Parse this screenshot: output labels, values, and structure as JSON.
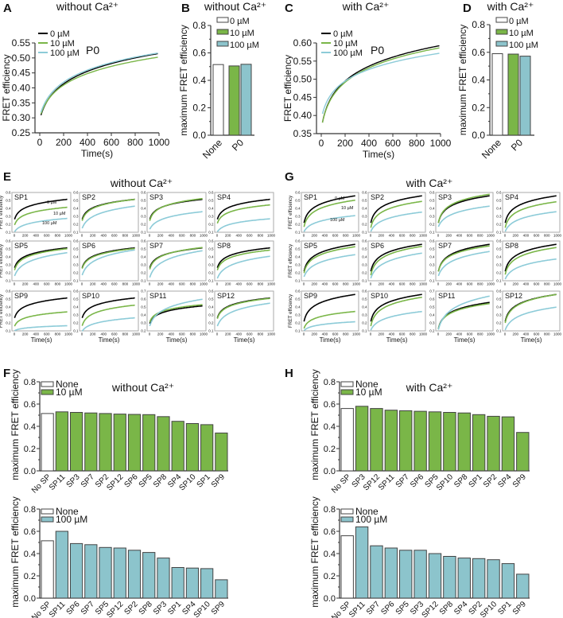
{
  "chart_data": [
    {
      "panel": "A",
      "type": "line",
      "title": "without Ca²⁺",
      "annotation": "P0",
      "xlabel": "Time(s)",
      "ylabel": "FRET efficiency",
      "xlim": [
        0,
        1000
      ],
      "ylim": [
        0.25,
        0.55
      ],
      "xticks": [
        "0",
        "200",
        "400",
        "600",
        "800",
        "1000"
      ],
      "yticks": [
        "0.25",
        "0.30",
        "0.35",
        "0.40",
        "0.45",
        "0.50",
        "0.55"
      ],
      "series": [
        {
          "name": "0 µM",
          "color": "#000000",
          "start": 0.295,
          "end": 0.515
        },
        {
          "name": "10 µM",
          "color": "#7ab648",
          "start": 0.3,
          "end": 0.503
        },
        {
          "name": "100 µM",
          "color": "#8ccbd8",
          "start": 0.305,
          "end": 0.517
        }
      ]
    },
    {
      "panel": "B",
      "type": "bar",
      "title": "without Ca²⁺",
      "ylabel": "maximum FRET efficiency",
      "ylim": [
        0,
        0.8
      ],
      "yticks": [
        "0.0",
        "0.2",
        "0.4",
        "0.6",
        "0.8"
      ],
      "categories": [
        "None",
        "P0"
      ],
      "series": [
        {
          "name": "0 µM",
          "color": "#ffffff",
          "values": [
            0.515,
            null
          ]
        },
        {
          "name": "10 µM",
          "color": "#7ab648",
          "values": [
            null,
            0.505
          ]
        },
        {
          "name": "100 µM",
          "color": "#8cc4cc",
          "values": [
            null,
            0.517
          ]
        }
      ]
    },
    {
      "panel": "C",
      "type": "line",
      "title": "with Ca²⁺",
      "annotation": "P0",
      "xlabel": "Time(s)",
      "ylabel": "FRET efficiency",
      "xlim": [
        0,
        1000
      ],
      "ylim": [
        0.35,
        0.6
      ],
      "xticks": [
        "0",
        "200",
        "400",
        "600",
        "800",
        "1000"
      ],
      "yticks": [
        "0.35",
        "0.40",
        "0.45",
        "0.50",
        "0.55",
        "0.60"
      ],
      "series": [
        {
          "name": "0 µM",
          "color": "#000000",
          "start": 0.362,
          "end": 0.593
        },
        {
          "name": "10 µM",
          "color": "#7ab648",
          "start": 0.362,
          "end": 0.587
        },
        {
          "name": "100 µM",
          "color": "#8ccbd8",
          "start": 0.39,
          "end": 0.572
        }
      ]
    },
    {
      "panel": "D",
      "type": "bar",
      "title": "with Ca²⁺",
      "ylabel": "maximum FRET efficiency",
      "ylim": [
        0,
        0.8
      ],
      "yticks": [
        "0.0",
        "0.2",
        "0.4",
        "0.6",
        "0.8"
      ],
      "categories": [
        "None",
        "P0"
      ],
      "series": [
        {
          "name": "0 µM",
          "color": "#ffffff",
          "values": [
            0.59,
            null
          ]
        },
        {
          "name": "10 µM",
          "color": "#7ab648",
          "values": [
            null,
            0.587
          ]
        },
        {
          "name": "100 µM",
          "color": "#8cc4cc",
          "values": [
            null,
            0.572
          ]
        }
      ]
    },
    {
      "panel": "E",
      "type": "line",
      "title": "without Ca²⁺",
      "xlabel": "Time(s)",
      "ylabel": "FRET efficiency",
      "xlim": [
        0,
        1000
      ],
      "xticks": [
        "0",
        "200",
        "400",
        "600",
        "800",
        "1000"
      ],
      "legend": [
        {
          "name": "0 µM",
          "color": "#000000"
        },
        {
          "name": "10 µM",
          "color": "#7ab648"
        },
        {
          "name": "100 µM",
          "color": "#8ccbd8"
        }
      ],
      "subplots": [
        {
          "name": "SP1",
          "ylim": [
            0.1,
            0.6
          ],
          "yticks": [
            "0.1",
            "0.2",
            "0.3",
            "0.4",
            "0.5",
            "0.6"
          ],
          "start": [
            0.25,
            0.18,
            0.1
          ],
          "end": [
            0.515,
            0.415,
            0.275
          ]
        },
        {
          "name": "SP2",
          "ylim": [
            0.1,
            0.6
          ],
          "yticks": [
            "0.1",
            "0.2",
            "0.3",
            "0.4",
            "0.5",
            "0.6"
          ],
          "start": [
            0.25,
            0.23,
            0.14
          ],
          "end": [
            0.515,
            0.515,
            0.43
          ]
        },
        {
          "name": "SP3",
          "ylim": [
            0.1,
            0.6
          ],
          "yticks": [
            "0.1",
            "0.2",
            "0.3",
            "0.4",
            "0.5",
            "0.6"
          ],
          "start": [
            0.25,
            0.23,
            0.13
          ],
          "end": [
            0.515,
            0.525,
            0.36
          ]
        },
        {
          "name": "SP4",
          "ylim": [
            0.1,
            0.6
          ],
          "yticks": [
            "0.1",
            "0.2",
            "0.3",
            "0.4",
            "0.5",
            "0.6"
          ],
          "start": [
            0.25,
            0.2,
            0.1
          ],
          "end": [
            0.515,
            0.445,
            0.27
          ]
        },
        {
          "name": "SP5",
          "ylim": [
            0.1,
            0.6
          ],
          "yticks": [
            "0.1",
            "0.2",
            "0.3",
            "0.4",
            "0.5",
            "0.6"
          ],
          "start": [
            0.25,
            0.22,
            0.15
          ],
          "end": [
            0.515,
            0.505,
            0.455
          ]
        },
        {
          "name": "SP6",
          "ylim": [
            0.1,
            0.6
          ],
          "yticks": [
            "0.1",
            "0.2",
            "0.3",
            "0.4",
            "0.5",
            "0.6"
          ],
          "start": [
            0.25,
            0.24,
            0.16
          ],
          "end": [
            0.515,
            0.507,
            0.49
          ]
        },
        {
          "name": "SP7",
          "ylim": [
            0.1,
            0.6
          ],
          "yticks": [
            "0.1",
            "0.2",
            "0.3",
            "0.4",
            "0.5",
            "0.6"
          ],
          "start": [
            0.25,
            0.23,
            0.13
          ],
          "end": [
            0.515,
            0.52,
            0.48
          ]
        },
        {
          "name": "SP8",
          "ylim": [
            0.1,
            0.6
          ],
          "yticks": [
            "0.1",
            "0.2",
            "0.3",
            "0.4",
            "0.5",
            "0.6"
          ],
          "start": [
            0.25,
            0.22,
            0.12
          ],
          "end": [
            0.515,
            0.487,
            0.41
          ]
        },
        {
          "name": "SP9",
          "ylim": [
            0.1,
            0.6
          ],
          "yticks": [
            "0.1",
            "0.2",
            "0.3",
            "0.4",
            "0.5",
            "0.6"
          ],
          "start": [
            0.25,
            0.15,
            0.1
          ],
          "end": [
            0.515,
            0.34,
            0.165
          ]
        },
        {
          "name": "SP10",
          "ylim": [
            0.1,
            0.6
          ],
          "yticks": [
            "0.1",
            "0.2",
            "0.3",
            "0.4",
            "0.5",
            "0.6"
          ],
          "start": [
            0.25,
            0.15,
            0.09
          ],
          "end": [
            0.515,
            0.425,
            0.265
          ]
        },
        {
          "name": "SP11",
          "ylim": [
            0.2,
            0.7
          ],
          "yticks": [
            "0.2",
            "0.3",
            "0.4",
            "0.5",
            "0.6",
            "0.7"
          ],
          "start": [
            0.28,
            0.3,
            0.25
          ],
          "end": [
            0.515,
            0.53,
            0.6
          ]
        },
        {
          "name": "SP12",
          "ylim": [
            0.1,
            0.6
          ],
          "yticks": [
            "0.1",
            "0.2",
            "0.3",
            "0.4",
            "0.5",
            "0.6"
          ],
          "start": [
            0.25,
            0.24,
            0.15
          ],
          "end": [
            0.515,
            0.51,
            0.45
          ]
        }
      ]
    },
    {
      "panel": "G",
      "type": "line",
      "title": "with Ca²⁺",
      "xlabel": "Time(s)",
      "ylabel": "FRET efficiency",
      "xlim": [
        0,
        1000
      ],
      "xticks": [
        "0",
        "200",
        "400",
        "600",
        "800",
        "1000"
      ],
      "legend": [
        {
          "name": "0 µM",
          "color": "#000000"
        },
        {
          "name": "10 µM",
          "color": "#7ab648"
        },
        {
          "name": "100 µM",
          "color": "#8ccbd8"
        }
      ],
      "subplots": [
        {
          "name": "SP1",
          "ylim": [
            0.1,
            0.6
          ],
          "yticks": [
            "0.1",
            "0.2",
            "0.3",
            "0.4",
            "0.5",
            "0.6"
          ],
          "start": [
            0.2,
            0.15,
            0.1
          ],
          "end": [
            0.56,
            0.505,
            0.31
          ]
        },
        {
          "name": "SP2",
          "ylim": [
            0.1,
            0.6
          ],
          "yticks": [
            "0.1",
            "0.2",
            "0.3",
            "0.4",
            "0.5",
            "0.6"
          ],
          "start": [
            0.2,
            0.14,
            0.1
          ],
          "end": [
            0.56,
            0.49,
            0.355
          ]
        },
        {
          "name": "SP3",
          "ylim": [
            0.1,
            0.6
          ],
          "yticks": [
            "0.1",
            "0.2",
            "0.3",
            "0.4",
            "0.5",
            "0.6"
          ],
          "start": [
            0.2,
            0.2,
            0.16
          ],
          "end": [
            0.56,
            0.58,
            0.43
          ]
        },
        {
          "name": "SP4",
          "ylim": [
            0.1,
            0.6
          ],
          "yticks": [
            "0.1",
            "0.2",
            "0.3",
            "0.4",
            "0.5",
            "0.6"
          ],
          "start": [
            0.2,
            0.14,
            0.1
          ],
          "end": [
            0.56,
            0.485,
            0.36
          ]
        },
        {
          "name": "SP5",
          "ylim": [
            0.1,
            0.6
          ],
          "yticks": [
            "0.1",
            "0.2",
            "0.3",
            "0.4",
            "0.5",
            "0.6"
          ],
          "start": [
            0.2,
            0.18,
            0.14
          ],
          "end": [
            0.56,
            0.53,
            0.43
          ]
        },
        {
          "name": "SP6",
          "ylim": [
            0.1,
            0.6
          ],
          "yticks": [
            "0.1",
            "0.2",
            "0.3",
            "0.4",
            "0.5",
            "0.6"
          ],
          "start": [
            0.2,
            0.15,
            0.12
          ],
          "end": [
            0.56,
            0.535,
            0.45
          ]
        },
        {
          "name": "SP7",
          "ylim": [
            0.1,
            0.6
          ],
          "yticks": [
            "0.1",
            "0.2",
            "0.3",
            "0.4",
            "0.5",
            "0.6"
          ],
          "start": [
            0.2,
            0.2,
            0.15
          ],
          "end": [
            0.56,
            0.54,
            0.47
          ]
        },
        {
          "name": "SP8",
          "ylim": [
            0.1,
            0.6
          ],
          "yticks": [
            "0.1",
            "0.2",
            "0.3",
            "0.4",
            "0.5",
            "0.6"
          ],
          "start": [
            0.2,
            0.16,
            0.11
          ],
          "end": [
            0.56,
            0.52,
            0.375
          ]
        },
        {
          "name": "SP9",
          "ylim": [
            0.1,
            0.6
          ],
          "yticks": [
            "0.1",
            "0.2",
            "0.3",
            "0.4",
            "0.5",
            "0.6"
          ],
          "start": [
            0.2,
            0.12,
            0.1
          ],
          "end": [
            0.56,
            0.345,
            0.215
          ]
        },
        {
          "name": "SP10",
          "ylim": [
            0.1,
            0.6
          ],
          "yticks": [
            "0.1",
            "0.2",
            "0.3",
            "0.4",
            "0.5",
            "0.6"
          ],
          "start": [
            0.2,
            0.14,
            0.1
          ],
          "end": [
            0.56,
            0.525,
            0.345
          ]
        },
        {
          "name": "SP11",
          "ylim": [
            0.2,
            0.7
          ],
          "yticks": [
            "0.2",
            "0.3",
            "0.4",
            "0.5",
            "0.6",
            "0.7"
          ],
          "start": [
            0.21,
            0.21,
            0.2
          ],
          "end": [
            0.56,
            0.545,
            0.64
          ]
        },
        {
          "name": "SP12",
          "ylim": [
            0.1,
            0.6
          ],
          "yticks": [
            "0.1",
            "0.2",
            "0.3",
            "0.4",
            "0.5",
            "0.6"
          ],
          "start": [
            0.2,
            0.18,
            0.1
          ],
          "end": [
            0.56,
            0.56,
            0.4
          ]
        }
      ]
    },
    {
      "panel": "F",
      "type": "bar",
      "title": "without Ca²⁺",
      "ylabel": "maximum FRET efficiency",
      "ylim": [
        0,
        0.8
      ],
      "yticks": [
        "0.0",
        "0.2",
        "0.4",
        "0.6",
        "0.8"
      ],
      "legend": [
        {
          "name": "None",
          "color": "#ffffff"
        },
        {
          "name": "10 µM",
          "color": "#7ab648"
        }
      ],
      "categories": [
        "No SP",
        "SP11",
        "SP3",
        "SP7",
        "SP2",
        "SP12",
        "SP6",
        "SP5",
        "SP8",
        "SP4",
        "SP10",
        "SP1",
        "SP9"
      ],
      "values": [
        0.515,
        0.53,
        0.525,
        0.52,
        0.515,
        0.51,
        0.507,
        0.505,
        0.487,
        0.445,
        0.425,
        0.415,
        0.34
      ]
    },
    {
      "panel": "F",
      "type": "bar",
      "title": "",
      "ylabel": "maximum FRET efficiency",
      "ylim": [
        0,
        0.8
      ],
      "yticks": [
        "0.0",
        "0.2",
        "0.4",
        "0.6",
        "0.8"
      ],
      "legend": [
        {
          "name": "None",
          "color": "#ffffff"
        },
        {
          "name": "100 µM",
          "color": "#8cc4cc"
        }
      ],
      "categories": [
        "No SP",
        "SP11",
        "SP6",
        "SP7",
        "SP5",
        "SP12",
        "SP2",
        "SP8",
        "SP3",
        "SP1",
        "SP4",
        "SP10",
        "SP9"
      ],
      "values": [
        0.515,
        0.6,
        0.49,
        0.48,
        0.455,
        0.45,
        0.43,
        0.41,
        0.36,
        0.275,
        0.27,
        0.265,
        0.165
      ]
    },
    {
      "panel": "H",
      "type": "bar",
      "title": "with Ca²⁺",
      "ylabel": "maximum FRET efficiency",
      "ylim": [
        0,
        0.8
      ],
      "yticks": [
        "0.0",
        "0.2",
        "0.4",
        "0.6",
        "0.8"
      ],
      "legend": [
        {
          "name": "None",
          "color": "#ffffff"
        },
        {
          "name": "10 µM",
          "color": "#7ab648"
        }
      ],
      "categories": [
        "No SP",
        "SP3",
        "SP12",
        "SP11",
        "SP7",
        "SP6",
        "SP5",
        "SP10",
        "SP8",
        "SP1",
        "SP2",
        "SP4",
        "SP9"
      ],
      "values": [
        0.56,
        0.58,
        0.56,
        0.545,
        0.54,
        0.535,
        0.53,
        0.525,
        0.52,
        0.505,
        0.49,
        0.485,
        0.345
      ]
    },
    {
      "panel": "H",
      "type": "bar",
      "title": "",
      "ylabel": "maximum FRET efficiency",
      "ylim": [
        0,
        0.8
      ],
      "yticks": [
        "0.0",
        "0.2",
        "0.4",
        "0.6",
        "0.8"
      ],
      "legend": [
        {
          "name": "None",
          "color": "#ffffff"
        },
        {
          "name": "100 µM",
          "color": "#8cc4cc"
        }
      ],
      "categories": [
        "No SP",
        "SP11",
        "SP7",
        "SP6",
        "SP5",
        "SP3",
        "SP12",
        "SP8",
        "SP4",
        "SP2",
        "SP10",
        "SP1",
        "SP9"
      ],
      "values": [
        0.56,
        0.64,
        0.47,
        0.45,
        0.43,
        0.43,
        0.4,
        0.375,
        0.36,
        0.355,
        0.345,
        0.31,
        0.215
      ]
    }
  ]
}
